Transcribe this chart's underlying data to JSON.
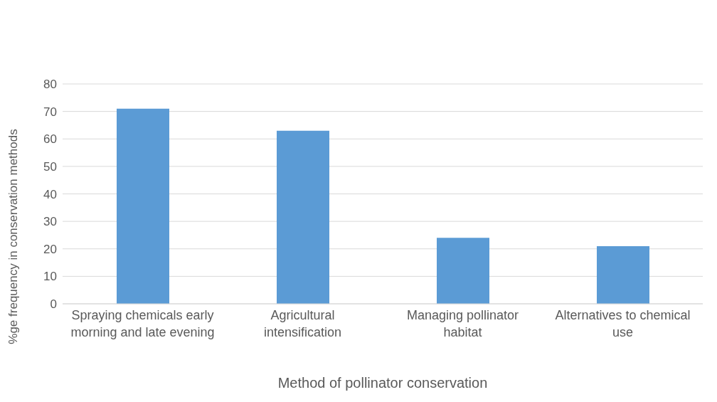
{
  "chart_data": {
    "type": "bar",
    "xlabel": "Method of pollinator conservation",
    "ylabel": "%ge frequency in conservation methods",
    "categories": [
      "Spraying chemicals early morning and late evening",
      "Agricultural intensification",
      "Managing pollinator habitat",
      "Alternatives to chemical use"
    ],
    "values": [
      71,
      63,
      24,
      21
    ],
    "color": "#5b9bd5",
    "ylim": [
      0,
      80
    ],
    "yticks": [
      0,
      10,
      20,
      30,
      40,
      50,
      60,
      70,
      80
    ],
    "grid": "y"
  }
}
